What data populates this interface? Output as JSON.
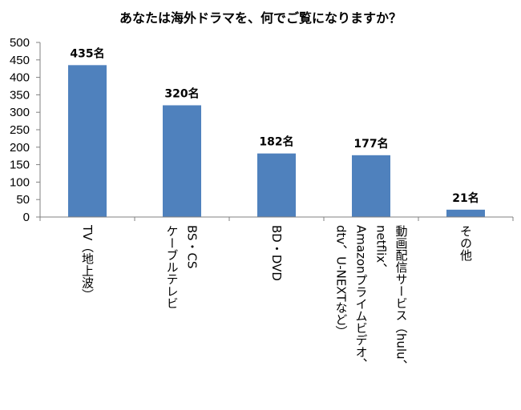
{
  "chart_data": {
    "type": "bar",
    "title": "あなたは海外ドラマを、何でご覧になりますか？",
    "categories": [
      [
        "TV（地上波）"
      ],
      [
        "BS・CS",
        "ケーブルテレビ"
      ],
      [
        "BD・DVD"
      ],
      [
        "動画配信サービス（hulu、",
        "netflix、",
        "Amazonプライムビデオ、",
        "dtv、U-NEXTなど）"
      ],
      [
        "その他"
      ]
    ],
    "values": [
      435,
      320,
      182,
      177,
      21
    ],
    "data_labels": [
      "435名",
      "320名",
      "182名",
      "177名",
      "21名"
    ],
    "ylim": [
      0,
      500
    ],
    "yticks": [
      "0",
      "50",
      "100",
      "150",
      "200",
      "250",
      "300",
      "350",
      "400",
      "450",
      "500"
    ],
    "grid": false,
    "colors": {
      "bar": "#4f81bd",
      "axis": "#808080"
    }
  }
}
